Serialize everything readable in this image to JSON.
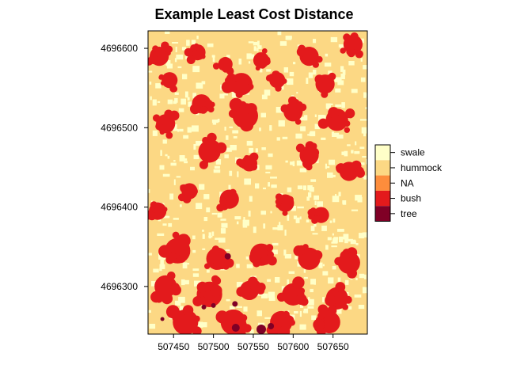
{
  "chart_data": {
    "type": "heatmap",
    "title": "Example Least Cost Distance",
    "xlabel": "",
    "ylabel": "",
    "xlim": [
      507418,
      507693
    ],
    "ylim": [
      4696240,
      4696622
    ],
    "x_ticks": [
      507450,
      507500,
      507550,
      507600,
      507650
    ],
    "x_tick_labels": [
      "507450",
      "507500",
      "507550",
      "507600",
      "507650"
    ],
    "y_ticks": [
      4696300,
      4696400,
      4696500,
      4696600
    ],
    "y_tick_labels": [
      "4696300",
      "4696400",
      "4696500",
      "4696600"
    ],
    "legend_position": "right",
    "classes": [
      {
        "label": "swale",
        "color": "#FFFFC8"
      },
      {
        "label": "hummock",
        "color": "#FCD884"
      },
      {
        "label": "NA",
        "color": "#FD8D3C"
      },
      {
        "label": "bush",
        "color": "#E31A1C"
      },
      {
        "label": "tree",
        "color": "#800026"
      }
    ],
    "class_patches": [
      {
        "class": "bush",
        "x": 507432,
        "y": 4696590,
        "r": 12
      },
      {
        "class": "bush",
        "x": 507480,
        "y": 4696595,
        "r": 10
      },
      {
        "class": "bush",
        "x": 507515,
        "y": 4696580,
        "r": 9
      },
      {
        "class": "bush",
        "x": 507560,
        "y": 4696585,
        "r": 10
      },
      {
        "class": "bush",
        "x": 507620,
        "y": 4696590,
        "r": 12
      },
      {
        "class": "bush",
        "x": 507675,
        "y": 4696605,
        "r": 12
      },
      {
        "class": "bush",
        "x": 507445,
        "y": 4696560,
        "r": 10
      },
      {
        "class": "bush",
        "x": 507535,
        "y": 4696555,
        "r": 14
      },
      {
        "class": "bush",
        "x": 507580,
        "y": 4696560,
        "r": 10
      },
      {
        "class": "bush",
        "x": 507640,
        "y": 4696555,
        "r": 12
      },
      {
        "class": "bush",
        "x": 507485,
        "y": 4696530,
        "r": 12
      },
      {
        "class": "bush",
        "x": 507540,
        "y": 4696515,
        "r": 16
      },
      {
        "class": "bush",
        "x": 507600,
        "y": 4696520,
        "r": 12
      },
      {
        "class": "bush",
        "x": 507655,
        "y": 4696510,
        "r": 14
      },
      {
        "class": "bush",
        "x": 507440,
        "y": 4696505,
        "r": 12
      },
      {
        "class": "bush",
        "x": 507495,
        "y": 4696470,
        "r": 14
      },
      {
        "class": "bush",
        "x": 507545,
        "y": 4696455,
        "r": 10
      },
      {
        "class": "bush",
        "x": 507620,
        "y": 4696465,
        "r": 12
      },
      {
        "class": "bush",
        "x": 507670,
        "y": 4696445,
        "r": 12
      },
      {
        "class": "bush",
        "x": 507470,
        "y": 4696420,
        "r": 10
      },
      {
        "class": "bush",
        "x": 507520,
        "y": 4696410,
        "r": 12
      },
      {
        "class": "bush",
        "x": 507590,
        "y": 4696405,
        "r": 11
      },
      {
        "class": "bush",
        "x": 507635,
        "y": 4696390,
        "r": 10
      },
      {
        "class": "bush",
        "x": 507430,
        "y": 4696395,
        "r": 11
      },
      {
        "class": "bush",
        "x": 507455,
        "y": 4696345,
        "r": 16
      },
      {
        "class": "bush",
        "x": 507505,
        "y": 4696335,
        "r": 14
      },
      {
        "class": "bush",
        "x": 507560,
        "y": 4696340,
        "r": 14
      },
      {
        "class": "bush",
        "x": 507620,
        "y": 4696335,
        "r": 14
      },
      {
        "class": "bush",
        "x": 507670,
        "y": 4696330,
        "r": 14
      },
      {
        "class": "bush",
        "x": 507440,
        "y": 4696300,
        "r": 14
      },
      {
        "class": "bush",
        "x": 507495,
        "y": 4696290,
        "r": 16
      },
      {
        "class": "bush",
        "x": 507545,
        "y": 4696295,
        "r": 12
      },
      {
        "class": "bush",
        "x": 507600,
        "y": 4696290,
        "r": 14
      },
      {
        "class": "bush",
        "x": 507655,
        "y": 4696285,
        "r": 14
      },
      {
        "class": "bush",
        "x": 507465,
        "y": 4696255,
        "r": 16
      },
      {
        "class": "bush",
        "x": 507525,
        "y": 4696255,
        "r": 16
      },
      {
        "class": "bush",
        "x": 507585,
        "y": 4696255,
        "r": 14
      },
      {
        "class": "bush",
        "x": 507645,
        "y": 4696255,
        "r": 14
      },
      {
        "class": "tree",
        "x": 507518,
        "y": 4696338,
        "r": 4
      },
      {
        "class": "tree",
        "x": 507527,
        "y": 4696278,
        "r": 3.5
      },
      {
        "class": "tree",
        "x": 507488,
        "y": 4696274,
        "r": 3
      },
      {
        "class": "tree",
        "x": 507500,
        "y": 4696276,
        "r": 3
      },
      {
        "class": "tree",
        "x": 507436,
        "y": 4696259,
        "r": 2.5
      },
      {
        "class": "tree",
        "x": 507528,
        "y": 4696248,
        "r": 5
      },
      {
        "class": "tree",
        "x": 507560,
        "y": 4696246,
        "r": 6
      },
      {
        "class": "tree",
        "x": 507572,
        "y": 4696250,
        "r": 4
      }
    ]
  }
}
